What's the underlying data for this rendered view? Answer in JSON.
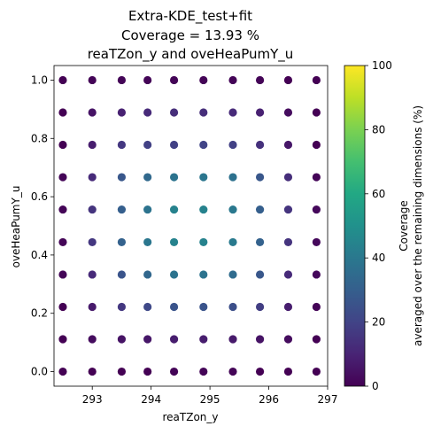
{
  "chart_data": {
    "type": "scatter",
    "title_lines": [
      "Extra-KDE_test+fit",
      "Coverage = 13.93 %",
      "reaTZon_y and oveHeaPumY_u"
    ],
    "xlabel": "reaTZon_y",
    "ylabel": "oveHeaPumY_u",
    "xlim": [
      292.35,
      297.0
    ],
    "ylim": [
      -0.05,
      1.05
    ],
    "xticks": [
      293,
      294,
      295,
      296,
      297
    ],
    "yticks": [
      0.0,
      0.2,
      0.4,
      0.6,
      0.8,
      1.0
    ],
    "ytick_labels": [
      "0.0",
      "0.2",
      "0.4",
      "0.6",
      "0.8",
      "1.0"
    ],
    "x_values": [
      292.5,
      293.0,
      293.5,
      293.94,
      294.39,
      294.89,
      295.39,
      295.85,
      296.33,
      296.81
    ],
    "y_values": [
      0.0,
      0.111,
      0.222,
      0.333,
      0.444,
      0.556,
      0.667,
      0.778,
      0.889,
      1.0
    ],
    "coverage_grid": [
      [
        0,
        0,
        0,
        0,
        1,
        1,
        1,
        0,
        0,
        0
      ],
      [
        0,
        3,
        5,
        6,
        8,
        8,
        7,
        5,
        3,
        0
      ],
      [
        0,
        7,
        16,
        22,
        26,
        26,
        24,
        18,
        8,
        1
      ],
      [
        1,
        12,
        26,
        33,
        38,
        38,
        35,
        27,
        12,
        2
      ],
      [
        1,
        16,
        31,
        39,
        44,
        44,
        41,
        31,
        15,
        2
      ],
      [
        1,
        15,
        30,
        38,
        44,
        44,
        40,
        30,
        15,
        2
      ],
      [
        1,
        12,
        27,
        34,
        38,
        39,
        37,
        27,
        13,
        1
      ],
      [
        0,
        8,
        16,
        19,
        19,
        20,
        19,
        14,
        6,
        0
      ],
      [
        0,
        5,
        9,
        12,
        13,
        13,
        12,
        9,
        3,
        0
      ],
      [
        0,
        1,
        1,
        1,
        1,
        1,
        1,
        1,
        0,
        0
      ]
    ],
    "colorbar": {
      "min": 0,
      "max": 100,
      "ticks": [
        0,
        20,
        40,
        60,
        80,
        100
      ],
      "label_lines": [
        "Coverage",
        "averaged over the remaining dimensions (%)"
      ],
      "colormap": "viridis"
    }
  }
}
